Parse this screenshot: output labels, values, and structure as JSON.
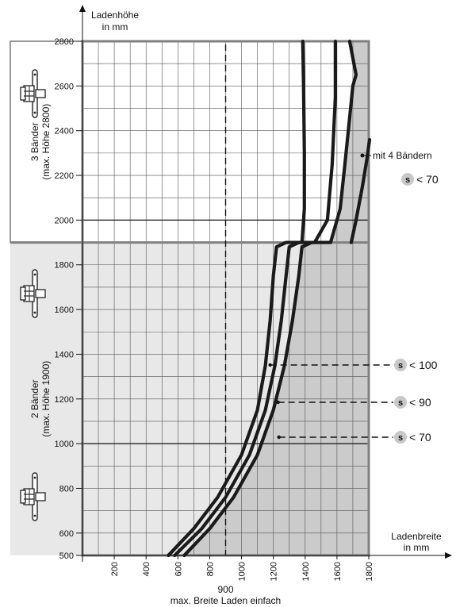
{
  "chart_data": {
    "type": "line",
    "ylabel_lines": [
      "Ladenhöhe",
      "in mm"
    ],
    "xlabel_lines": [
      "Ladenbreite",
      "in mm"
    ],
    "x_ticks": [
      200,
      400,
      600,
      800,
      1000,
      1200,
      1400,
      1600,
      1800
    ],
    "y_ticks": [
      500,
      600,
      800,
      1000,
      1200,
      1400,
      1600,
      1800,
      2000,
      2200,
      2400,
      2600,
      2800
    ],
    "xlim": [
      0,
      1800
    ],
    "ylim": [
      500,
      2800
    ],
    "grid": true,
    "zones": [
      {
        "label_lines": [
          "3 Bänder",
          "(max. Höhe 2800)"
        ],
        "from": 1900,
        "to": 2800,
        "hinges": 3
      },
      {
        "label_lines": [
          "2 Bänder",
          "(max. Höhe 1900)"
        ],
        "from": 500,
        "to": 1900,
        "hinges": 2
      }
    ],
    "reference_line": {
      "x": 900,
      "label": "900",
      "caption": "max. Breite Laden einfach"
    },
    "series": [
      {
        "name": "s < 100",
        "x": [
          540,
          700,
          850,
          1000,
          1100,
          1150,
          1180,
          1200,
          1220,
          1280,
          1330,
          1380,
          1395,
          1395,
          1390,
          1385
        ],
        "y": [
          500,
          620,
          760,
          950,
          1150,
          1350,
          1550,
          1750,
          1880,
          1900,
          1900,
          1900,
          2050,
          2300,
          2600,
          2800
        ]
      },
      {
        "name": "s < 90",
        "x": [
          580,
          750,
          900,
          1050,
          1150,
          1210,
          1250,
          1280,
          1300,
          1360,
          1420,
          1460,
          1540,
          1570,
          1590,
          1590
        ],
        "y": [
          500,
          620,
          760,
          950,
          1150,
          1350,
          1550,
          1750,
          1880,
          1900,
          1900,
          1900,
          2000,
          2250,
          2550,
          2800
        ]
      },
      {
        "name": "s < 70",
        "x": [
          640,
          800,
          950,
          1100,
          1200,
          1270,
          1320,
          1360,
          1380,
          1440,
          1510,
          1560,
          1620,
          1650,
          1700,
          1720,
          1680
        ],
        "y": [
          500,
          620,
          760,
          950,
          1150,
          1350,
          1550,
          1750,
          1880,
          1900,
          1900,
          1900,
          2050,
          2250,
          2600,
          2650,
          2800
        ]
      },
      {
        "name": "mit 4 Bändern",
        "x": [
          1690,
          1720,
          1760,
          1790,
          1805
        ],
        "y": [
          1900,
          2000,
          2150,
          2280,
          2360
        ]
      }
    ],
    "annotations": [
      {
        "s_label": "s",
        "text": "< 100",
        "x": 1180,
        "y": 1360
      },
      {
        "s_label": "s",
        "text": "< 90",
        "x": 1230,
        "y": 1190
      },
      {
        "s_label": "s",
        "text": "< 70",
        "x": 1235,
        "y": 1030
      },
      {
        "text": "mit 4 Bändern",
        "s_label": "s",
        "s_text": "< 70",
        "x": 1760,
        "y": 2290
      }
    ],
    "colors": {
      "shade": "#cbcbcb",
      "curve": "#1a1a1a",
      "grid": "#555555",
      "badge": "#c8c8c8",
      "frame": "#808080"
    }
  }
}
